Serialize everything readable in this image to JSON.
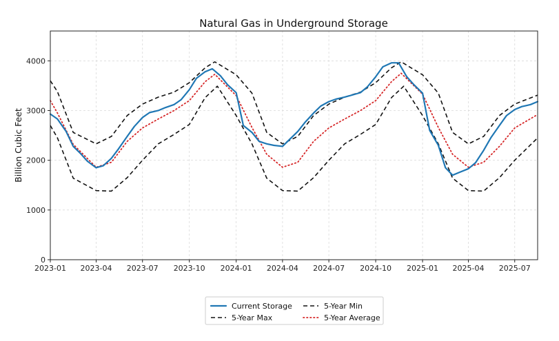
{
  "chart_data": {
    "type": "line",
    "title": "Natural Gas in Underground Storage",
    "xlabel": "",
    "ylabel": "Billion Cubic Feet",
    "ylim": [
      0,
      4600
    ],
    "xlim": [
      "2023-01-01",
      "2025-08-15"
    ],
    "yticks": [
      0,
      1000,
      2000,
      3000,
      4000
    ],
    "xticks": [
      "2023-01",
      "2023-04",
      "2023-07",
      "2023-10",
      "2024-01",
      "2024-04",
      "2024-07",
      "2024-10",
      "2025-01",
      "2025-04",
      "2025-07"
    ],
    "grid": true,
    "legend_position": "bottom-center",
    "legend_order": [
      "Current Storage",
      "5-Year Max",
      "5-Year Min",
      "5-Year Average"
    ],
    "series": [
      {
        "name": "Current Storage",
        "color": "#1f77b4",
        "style": "solid",
        "points": [
          [
            "2023-01-01",
            2930
          ],
          [
            "2023-01-15",
            2830
          ],
          [
            "2023-02-01",
            2580
          ],
          [
            "2023-02-15",
            2280
          ],
          [
            "2023-03-01",
            2140
          ],
          [
            "2023-03-15",
            1980
          ],
          [
            "2023-04-01",
            1850
          ],
          [
            "2023-04-15",
            1890
          ],
          [
            "2023-05-01",
            2040
          ],
          [
            "2023-05-15",
            2230
          ],
          [
            "2023-06-01",
            2480
          ],
          [
            "2023-06-15",
            2680
          ],
          [
            "2023-07-01",
            2860
          ],
          [
            "2023-07-15",
            2960
          ],
          [
            "2023-08-01",
            3000
          ],
          [
            "2023-08-15",
            3060
          ],
          [
            "2023-09-01",
            3120
          ],
          [
            "2023-09-15",
            3220
          ],
          [
            "2023-10-01",
            3420
          ],
          [
            "2023-10-15",
            3650
          ],
          [
            "2023-11-01",
            3780
          ],
          [
            "2023-11-15",
            3840
          ],
          [
            "2023-12-01",
            3700
          ],
          [
            "2023-12-15",
            3520
          ],
          [
            "2024-01-01",
            3360
          ],
          [
            "2024-01-15",
            2700
          ],
          [
            "2024-02-01",
            2560
          ],
          [
            "2024-02-15",
            2380
          ],
          [
            "2024-03-01",
            2330
          ],
          [
            "2024-03-15",
            2300
          ],
          [
            "2024-04-01",
            2280
          ],
          [
            "2024-04-15",
            2420
          ],
          [
            "2024-05-01",
            2580
          ],
          [
            "2024-05-15",
            2760
          ],
          [
            "2024-06-01",
            2950
          ],
          [
            "2024-06-15",
            3090
          ],
          [
            "2024-07-01",
            3180
          ],
          [
            "2024-07-15",
            3230
          ],
          [
            "2024-08-01",
            3270
          ],
          [
            "2024-08-15",
            3310
          ],
          [
            "2024-09-01",
            3360
          ],
          [
            "2024-09-15",
            3480
          ],
          [
            "2024-10-01",
            3680
          ],
          [
            "2024-10-15",
            3880
          ],
          [
            "2024-11-01",
            3960
          ],
          [
            "2024-11-15",
            3960
          ],
          [
            "2024-12-01",
            3680
          ],
          [
            "2024-12-15",
            3520
          ],
          [
            "2025-01-01",
            3350
          ],
          [
            "2025-01-15",
            2600
          ],
          [
            "2025-02-01",
            2300
          ],
          [
            "2025-02-15",
            1850
          ],
          [
            "2025-03-01",
            1700
          ],
          [
            "2025-03-15",
            1760
          ],
          [
            "2025-04-01",
            1830
          ],
          [
            "2025-04-15",
            1950
          ],
          [
            "2025-05-01",
            2200
          ],
          [
            "2025-05-15",
            2450
          ],
          [
            "2025-06-01",
            2700
          ],
          [
            "2025-06-15",
            2900
          ],
          [
            "2025-07-01",
            3020
          ],
          [
            "2025-07-15",
            3080
          ],
          [
            "2025-08-01",
            3120
          ],
          [
            "2025-08-15",
            3180
          ]
        ]
      },
      {
        "name": "5-Year Max",
        "color": "#111111",
        "style": "dashed",
        "points": [
          [
            "2023-01-01",
            3600
          ],
          [
            "2023-01-15",
            3380
          ],
          [
            "2023-02-15",
            2560
          ],
          [
            "2023-04-01",
            2330
          ],
          [
            "2023-05-01",
            2480
          ],
          [
            "2023-06-01",
            2900
          ],
          [
            "2023-07-01",
            3130
          ],
          [
            "2023-08-01",
            3270
          ],
          [
            "2023-09-01",
            3370
          ],
          [
            "2023-10-01",
            3560
          ],
          [
            "2023-11-01",
            3860
          ],
          [
            "2023-11-20",
            3980
          ],
          [
            "2024-01-01",
            3720
          ],
          [
            "2024-02-01",
            3350
          ],
          [
            "2024-03-01",
            2560
          ],
          [
            "2024-04-01",
            2330
          ],
          [
            "2024-05-01",
            2480
          ],
          [
            "2024-06-01",
            2900
          ],
          [
            "2024-07-01",
            3130
          ],
          [
            "2024-08-01",
            3270
          ],
          [
            "2024-09-01",
            3370
          ],
          [
            "2024-10-01",
            3560
          ],
          [
            "2024-11-01",
            3860
          ],
          [
            "2024-11-20",
            3980
          ],
          [
            "2025-01-01",
            3720
          ],
          [
            "2025-02-01",
            3350
          ],
          [
            "2025-03-01",
            2560
          ],
          [
            "2025-04-01",
            2330
          ],
          [
            "2025-05-01",
            2480
          ],
          [
            "2025-06-01",
            2900
          ],
          [
            "2025-07-01",
            3130
          ],
          [
            "2025-08-15",
            3310
          ]
        ]
      },
      {
        "name": "5-Year Min",
        "color": "#111111",
        "style": "dashed",
        "points": [
          [
            "2023-01-01",
            2700
          ],
          [
            "2023-01-15",
            2450
          ],
          [
            "2023-02-15",
            1640
          ],
          [
            "2023-04-01",
            1390
          ],
          [
            "2023-05-01",
            1380
          ],
          [
            "2023-06-01",
            1650
          ],
          [
            "2023-07-01",
            2000
          ],
          [
            "2023-08-01",
            2330
          ],
          [
            "2023-09-01",
            2520
          ],
          [
            "2023-10-01",
            2720
          ],
          [
            "2023-11-01",
            3260
          ],
          [
            "2023-11-25",
            3490
          ],
          [
            "2024-01-01",
            2900
          ],
          [
            "2024-02-01",
            2330
          ],
          [
            "2024-03-01",
            1640
          ],
          [
            "2024-04-01",
            1390
          ],
          [
            "2024-05-01",
            1380
          ],
          [
            "2024-06-01",
            1650
          ],
          [
            "2024-07-01",
            2000
          ],
          [
            "2024-08-01",
            2330
          ],
          [
            "2024-09-01",
            2520
          ],
          [
            "2024-10-01",
            2720
          ],
          [
            "2024-11-01",
            3260
          ],
          [
            "2024-11-25",
            3490
          ],
          [
            "2025-01-01",
            2900
          ],
          [
            "2025-02-01",
            2330
          ],
          [
            "2025-03-01",
            1640
          ],
          [
            "2025-04-01",
            1390
          ],
          [
            "2025-05-01",
            1380
          ],
          [
            "2025-06-01",
            1650
          ],
          [
            "2025-07-01",
            2000
          ],
          [
            "2025-08-15",
            2450
          ]
        ]
      },
      {
        "name": "5-Year Average",
        "color": "#d62728",
        "style": "dotted",
        "points": [
          [
            "2023-01-01",
            3200
          ],
          [
            "2023-01-15",
            2950
          ],
          [
            "2023-02-15",
            2320
          ],
          [
            "2023-04-01",
            1860
          ],
          [
            "2023-05-01",
            1960
          ],
          [
            "2023-06-01",
            2380
          ],
          [
            "2023-07-01",
            2650
          ],
          [
            "2023-08-01",
            2830
          ],
          [
            "2023-09-01",
            3000
          ],
          [
            "2023-10-01",
            3200
          ],
          [
            "2023-11-01",
            3580
          ],
          [
            "2023-11-20",
            3730
          ],
          [
            "2024-01-01",
            3300
          ],
          [
            "2024-02-01",
            2660
          ],
          [
            "2024-03-01",
            2120
          ],
          [
            "2024-04-01",
            1860
          ],
          [
            "2024-05-01",
            1960
          ],
          [
            "2024-06-01",
            2380
          ],
          [
            "2024-07-01",
            2650
          ],
          [
            "2024-08-01",
            2830
          ],
          [
            "2024-09-01",
            3000
          ],
          [
            "2024-10-01",
            3200
          ],
          [
            "2024-11-01",
            3580
          ],
          [
            "2024-11-20",
            3750
          ],
          [
            "2025-01-01",
            3330
          ],
          [
            "2025-02-01",
            2660
          ],
          [
            "2025-03-01",
            2120
          ],
          [
            "2025-04-01",
            1860
          ],
          [
            "2025-05-01",
            1960
          ],
          [
            "2025-06-01",
            2280
          ],
          [
            "2025-07-01",
            2650
          ],
          [
            "2025-08-15",
            2920
          ]
        ]
      }
    ]
  }
}
